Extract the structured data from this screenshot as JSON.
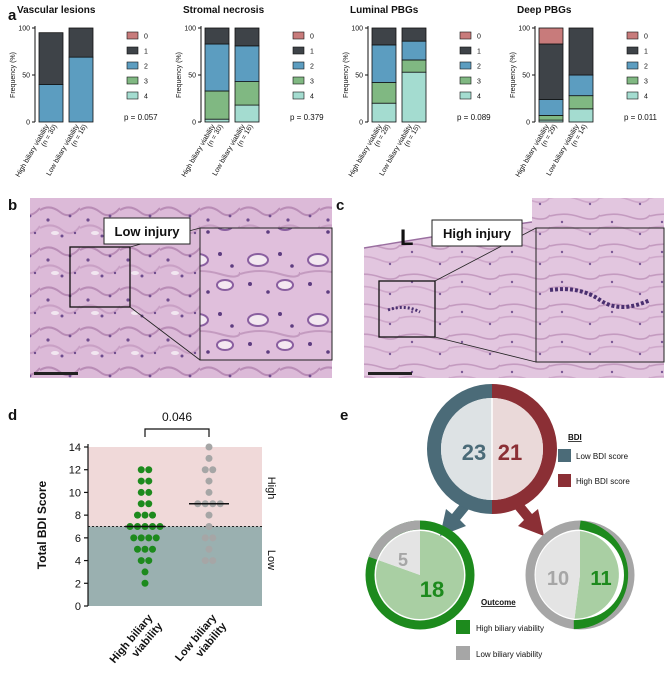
{
  "panel_labels": {
    "a": "a",
    "b": "b",
    "c": "c",
    "d": "d",
    "e": "e"
  },
  "colors": {
    "s0": "#c87b7b",
    "s1": "#3e4348",
    "s2": "#5c9dc0",
    "s3": "#80b882",
    "s4": "#a4dcd0",
    "tissue": "#d6b3d3",
    "green": "#1d8a1d",
    "grey": "#a6a6a6",
    "lowbdi": "#4b6b78",
    "highbdi": "#8b2f35",
    "high_zone": "#f0d9d9",
    "low_zone": "#9ab0b0"
  },
  "panel_a": {
    "legend": [
      "0",
      "1",
      "2",
      "3",
      "4"
    ],
    "ylabel": "Frequency (%)",
    "yticks": [
      "0",
      "50",
      "100"
    ],
    "xlabels": [
      "High biliary viability",
      "Low biliary viability"
    ],
    "charts": [
      {
        "title": "Vascular lesions",
        "p": "p = 0.057",
        "n": [
          "(n = 30)",
          "(n = 16)"
        ],
        "groups": [
          [
            0,
            55,
            40,
            0,
            0
          ],
          [
            0,
            31,
            69,
            0,
            0
          ]
        ]
      },
      {
        "title": "Stromal necrosis",
        "p": "p = 0.379",
        "n": [
          "(n = 30)",
          "(n = 16)"
        ],
        "groups": [
          [
            0,
            17,
            50,
            30,
            3
          ],
          [
            0,
            19,
            38,
            25,
            18
          ]
        ]
      },
      {
        "title": "Luminal PBGs",
        "p": "p = 0.089",
        "n": [
          "(n = 28)",
          "(n = 15)"
        ],
        "groups": [
          [
            0,
            18,
            40,
            22,
            20
          ],
          [
            0,
            14,
            20,
            13,
            53
          ]
        ]
      },
      {
        "title": "Deep PBGs",
        "p": "p = 0.011",
        "n": [
          "(n = 29)",
          "(n = 14)"
        ],
        "groups": [
          [
            17,
            59,
            17,
            5,
            2
          ],
          [
            0,
            50,
            22,
            14,
            14
          ]
        ]
      }
    ]
  },
  "panel_b": {
    "label": "Low injury"
  },
  "panel_c": {
    "label": "High injury",
    "lumen_letter": "L"
  },
  "chart_data": {
    "type": "scatter",
    "ylabel": "Total BDI Score",
    "ylim": [
      0,
      14
    ],
    "yticks": [
      "0",
      "2",
      "4",
      "6",
      "8",
      "10",
      "12",
      "14"
    ],
    "categories": [
      "High biliary viability",
      "Low biliary viability"
    ],
    "threshold": 7,
    "zone_labels": {
      "high": "High",
      "low": "Low"
    },
    "p_value": "0.046",
    "series": [
      {
        "name": "High biliary viability",
        "values": [
          12,
          12,
          11,
          11,
          10,
          10,
          9,
          9,
          8,
          8,
          8,
          7,
          7,
          7,
          7,
          7,
          6,
          6,
          6,
          6,
          5,
          5,
          5,
          4,
          4,
          3,
          2
        ],
        "median": 7
      },
      {
        "name": "Low biliary viability",
        "values": [
          14,
          13,
          12,
          12,
          11,
          10,
          9,
          9,
          9,
          9,
          8,
          7,
          6,
          6,
          5,
          4,
          4
        ],
        "median": 9
      }
    ]
  },
  "panel_e": {
    "top_left": "23",
    "top_right": "21",
    "bottom_left_small": "5",
    "bottom_left_big": "18",
    "bottom_right_small": "10",
    "bottom_right_big": "11",
    "bdi_title": "BDI",
    "bdi_low": "Low BDI score",
    "bdi_high": "High BDI score",
    "outcome_title": "Outcome",
    "outcome_high": "High biliary viability",
    "outcome_low": "Low biliary viability"
  }
}
